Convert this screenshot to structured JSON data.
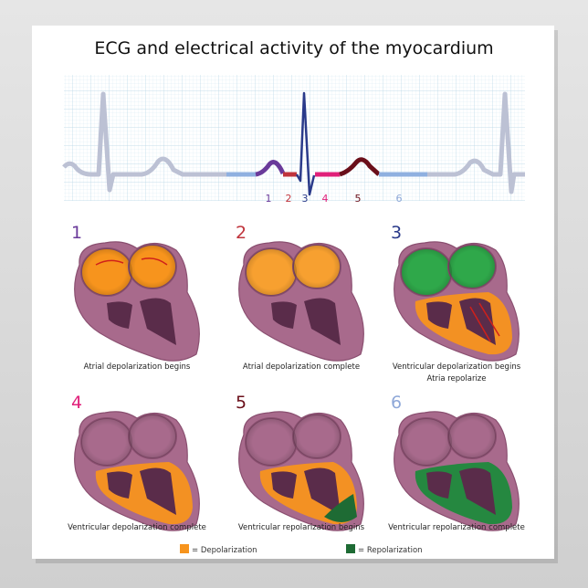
{
  "title": "ECG and electrical activity of the myocardium",
  "colors": {
    "depolarization": "#f7941d",
    "repolarization": "#1e6b34",
    "muscle": "#a86a8c",
    "chamber": "#5a2c4a",
    "ecg_gray": "#b8bdd0",
    "grid": "#cfe4ef"
  },
  "ecg": {
    "phase_labels": [
      {
        "text": "1",
        "color": "#6a3a9a"
      },
      {
        "text": "2",
        "color": "#c0343c"
      },
      {
        "text": "3",
        "color": "#2a3a8a"
      },
      {
        "text": "4",
        "color": "#e0207a"
      },
      {
        "text": "5",
        "color": "#6a0f1a"
      },
      {
        "text": "6",
        "color": "#8fa8d8"
      }
    ]
  },
  "panels": [
    {
      "number": "1",
      "color": "#6a3a9a",
      "caption": [
        "Atrial depolarization begins"
      ],
      "atria": "#f7941d",
      "ventricles": "#a86a8c",
      "atria_green": false
    },
    {
      "number": "2",
      "color": "#c0343c",
      "caption": [
        "Atrial depolarization complete"
      ],
      "atria": "#f7a030",
      "ventricles": "#a86a8c",
      "atria_green": false
    },
    {
      "number": "3",
      "color": "#2a3a8a",
      "caption": [
        "Ventricular depolarization begins",
        "Atria repolarize"
      ],
      "atria": "#2fa84a",
      "ventricles": "#f7941d",
      "atria_green": true
    },
    {
      "number": "4",
      "color": "#e0207a",
      "caption": [
        "Ventricular depolarization complete"
      ],
      "atria": "#a86a8c",
      "ventricles": "#f7941d",
      "atria_green": false
    },
    {
      "number": "5",
      "color": "#6a0f1a",
      "caption": [
        "Ventricular repolarization begins"
      ],
      "atria": "#a86a8c",
      "ventricles": "#f7941d",
      "atria_green": false
    },
    {
      "number": "6",
      "color": "#8fa8d8",
      "caption": [
        "Ventricular repolarization complete"
      ],
      "atria": "#a86a8c",
      "ventricles": "#1e8a3c",
      "atria_green": false
    }
  ],
  "legend": [
    {
      "color": "#f7941d",
      "label": "= Depolarization"
    },
    {
      "color": "#1e6b34",
      "label": "= Repolarization"
    }
  ]
}
